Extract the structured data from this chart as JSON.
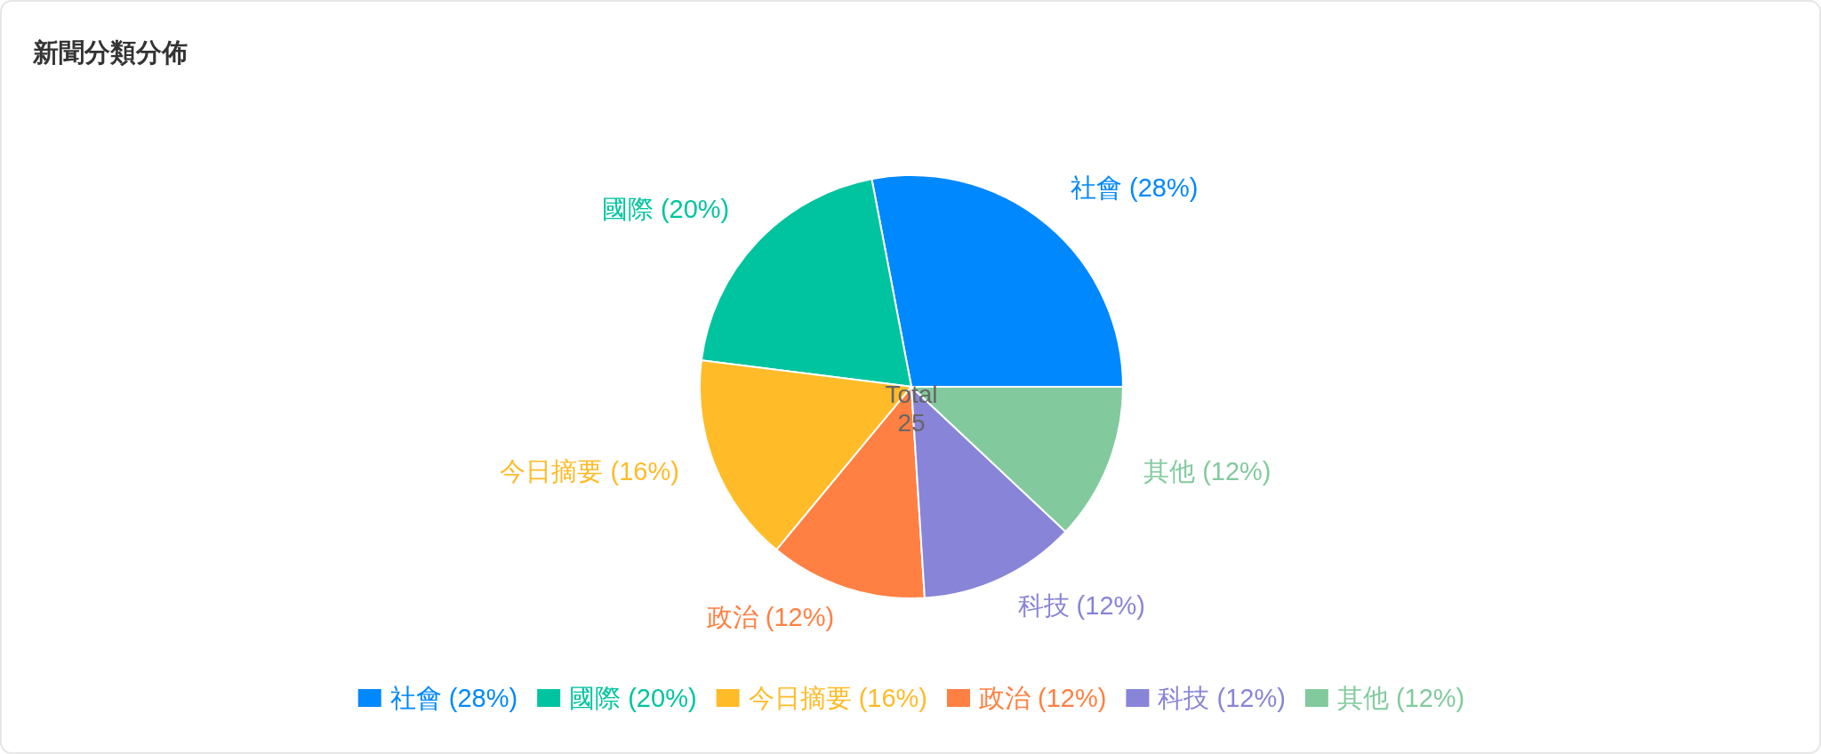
{
  "chart_data": {
    "type": "pie",
    "title": "新聞分類分佈",
    "categories": [
      "社會",
      "國際",
      "今日摘要",
      "政治",
      "科技",
      "其他"
    ],
    "values": [
      28,
      20,
      16,
      12,
      12,
      12
    ],
    "value_labels": [
      "(28%)",
      "(20%)",
      "(16%)",
      "(12%)",
      "(12%)",
      "(12%)"
    ],
    "colors": [
      "#0088fe",
      "#00c49f",
      "#ffbb28",
      "#ff8042",
      "#8884d8",
      "#82ca9d"
    ],
    "legend": "bottom",
    "annotations": [
      "Total 25"
    ]
  }
}
